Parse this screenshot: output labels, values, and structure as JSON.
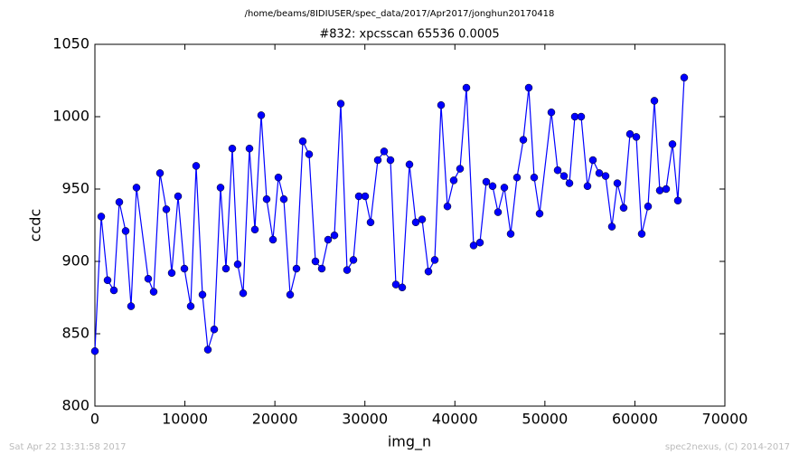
{
  "header": "/home/beams/8IDIUSER/spec_data/2017/Apr2017/jonghun20170418",
  "footer_left": "Sat Apr 22 13:31:58 2017",
  "footer_right": "spec2nexus, (C) 2014-2017",
  "chart_data": {
    "type": "line",
    "title": "#832: xpcsscan 65536 0.0005",
    "x_label": "img_n",
    "y_label": "ccdc",
    "xlim": [
      0,
      70000
    ],
    "xticks": [
      0,
      10000,
      20000,
      30000,
      40000,
      50000,
      60000,
      70000
    ],
    "ylim": [
      800,
      1050
    ],
    "yticks": [
      800,
      850,
      900,
      950,
      1000,
      1050
    ],
    "grid": false,
    "series": [
      {
        "name": "ccdc",
        "color": "#0000ff",
        "x": [
          0,
          703,
          1406,
          2109,
          2712,
          3415,
          4017,
          4620,
          5925,
          6528,
          7231,
          7934,
          8537,
          9240,
          9943,
          10646,
          11248,
          11951,
          12554,
          13257,
          13960,
          14562,
          15265,
          15868,
          16471,
          17174,
          17776,
          18479,
          19082,
          19785,
          20387,
          20990,
          21693,
          22396,
          23099,
          23802,
          24505,
          25208,
          25911,
          26614,
          27317,
          28020,
          28723,
          29326,
          30029,
          30631,
          31435,
          32138,
          32841,
          33443,
          34146,
          34950,
          35653,
          36356,
          37059,
          37762,
          38465,
          39168,
          39871,
          40574,
          41277,
          42080,
          42783,
          43486,
          44189,
          44791,
          45494,
          46198,
          46901,
          47604,
          48206,
          48809,
          49412,
          50717,
          51420,
          52123,
          52726,
          53328,
          54031,
          54734,
          55337,
          56040,
          56743,
          57446,
          58049,
          58752,
          59455,
          60158,
          60760,
          61463,
          62166,
          62769,
          63472,
          64175,
          64777,
          65480
        ],
        "values": [
          838,
          931,
          887,
          880,
          941,
          921,
          869,
          951,
          888,
          879,
          961,
          936,
          892,
          945,
          895,
          869,
          966,
          877,
          839,
          853,
          951,
          895,
          978,
          898,
          878,
          978,
          922,
          1001,
          943,
          915,
          958,
          943,
          877,
          895,
          983,
          974,
          900,
          895,
          915,
          918,
          1009,
          894,
          901,
          945,
          945,
          927,
          970,
          976,
          970,
          884,
          882,
          967,
          927,
          929,
          893,
          901,
          1008,
          938,
          956,
          964,
          1020,
          911,
          913,
          955,
          952,
          934,
          951,
          919,
          958,
          984,
          1020,
          958,
          933,
          1003,
          963,
          959,
          954,
          1000,
          1000,
          952,
          970,
          961,
          959,
          924,
          954,
          937,
          988,
          986,
          919,
          938,
          1011,
          949,
          950,
          981,
          942,
          1027
        ]
      }
    ]
  }
}
